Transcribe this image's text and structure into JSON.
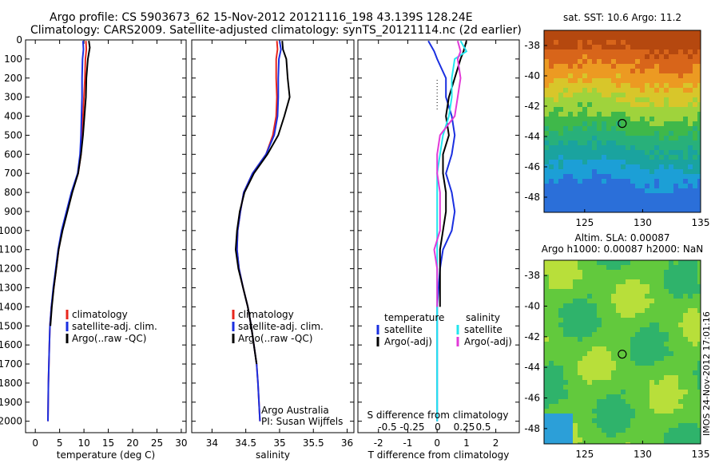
{
  "header": {
    "title_line1": "Argo profile: CS 5903673_62 15-Nov-2012 20121116_198 43.139S 128.24E",
    "title_line2": "Climatology: CARS2009. Satellite-adjusted climatology: synTS_20121114.nc (2d earlier)"
  },
  "colors": {
    "climatology": "#e8261c",
    "satellite": "#1a2fe0",
    "argo": "#000000",
    "salinity_satellite": "#22e6ee",
    "salinity_argo": "#e23ad8"
  },
  "footer": {
    "org": "Argo Australia",
    "pi": "PI: Susan Wijffels",
    "stamp": "IMOS 24-Nov-2012 17:01:16"
  },
  "chart_data": [
    {
      "type": "line",
      "panel": "temperature",
      "xlabel": "temperature (deg C)",
      "ylabel": "",
      "xlim": [
        -2,
        31
      ],
      "ylim": [
        2060,
        0
      ],
      "xticks": [
        0,
        5,
        10,
        15,
        20,
        25,
        30
      ],
      "yticks": [
        0,
        100,
        200,
        300,
        400,
        500,
        600,
        700,
        800,
        900,
        1000,
        1100,
        1200,
        1300,
        1400,
        1500,
        1600,
        1700,
        1800,
        1900,
        2000
      ],
      "legend": [
        "climatology",
        "satellite-adj. clim.",
        "Argo(..raw -QC)"
      ],
      "legend_position": "lower-right",
      "series": [
        {
          "name": "climatology",
          "x": [
            10.4,
            10.5,
            10.3,
            10.2,
            10.0,
            9.8,
            9.6,
            9.4,
            8.8,
            7.5,
            6.5,
            5.5,
            4.8,
            4.3,
            3.8,
            3.3,
            3.0,
            2.9,
            2.8,
            2.7,
            2.6
          ],
          "depth": [
            5,
            50,
            100,
            200,
            300,
            400,
            500,
            600,
            700,
            800,
            900,
            1000,
            1100,
            1200,
            1300,
            1400,
            1500,
            1600,
            1700,
            1800,
            2000
          ]
        },
        {
          "name": "satellite-adj. clim.",
          "x": [
            9.8,
            9.9,
            9.7,
            9.6,
            9.6,
            9.5,
            9.4,
            9.2,
            8.7,
            7.4,
            6.4,
            5.4,
            4.7,
            4.2,
            3.7,
            3.3,
            3.0,
            2.9,
            2.8,
            2.7,
            2.6
          ],
          "depth": [
            5,
            50,
            100,
            200,
            300,
            400,
            500,
            600,
            700,
            800,
            900,
            1000,
            1100,
            1200,
            1300,
            1400,
            1500,
            1600,
            1700,
            1800,
            2000
          ]
        },
        {
          "name": "Argo(..raw -QC)",
          "x": [
            11.0,
            11.2,
            10.8,
            10.5,
            10.4,
            10.1,
            9.8,
            9.4,
            8.8,
            7.6,
            6.6,
            5.6,
            4.8,
            4.3,
            3.8,
            3.4,
            3.1
          ],
          "depth": [
            5,
            40,
            100,
            200,
            300,
            400,
            500,
            600,
            700,
            800,
            900,
            1000,
            1100,
            1200,
            1300,
            1400,
            1500
          ]
        }
      ]
    },
    {
      "type": "line",
      "panel": "salinity",
      "xlabel": "salinity",
      "xlim": [
        33.7,
        36.1
      ],
      "ylim": [
        2060,
        0
      ],
      "xticks": [
        34,
        34.5,
        35,
        35.5,
        36
      ],
      "legend": [
        "climatology",
        "satellite-adj. clim.",
        "Argo(..raw -QC)"
      ],
      "legend_position": "lower-right",
      "series": [
        {
          "name": "climatology",
          "x": [
            34.96,
            34.97,
            34.95,
            34.95,
            34.96,
            34.95,
            34.9,
            34.8,
            34.6,
            34.47,
            34.42,
            34.38,
            34.37,
            34.4,
            34.46,
            34.53,
            34.58,
            34.62,
            34.66,
            34.68,
            34.71
          ],
          "depth": [
            5,
            50,
            100,
            200,
            300,
            400,
            500,
            600,
            700,
            800,
            900,
            1000,
            1100,
            1200,
            1300,
            1400,
            1500,
            1600,
            1700,
            1800,
            2000
          ]
        },
        {
          "name": "satellite-adj. clim.",
          "x": [
            35.0,
            35.02,
            34.99,
            34.98,
            34.98,
            34.97,
            34.92,
            34.8,
            34.6,
            34.47,
            34.42,
            34.38,
            34.37,
            34.4,
            34.46,
            34.53,
            34.58,
            34.62,
            34.66,
            34.68,
            34.71
          ],
          "depth": [
            5,
            50,
            100,
            200,
            300,
            400,
            500,
            600,
            700,
            800,
            900,
            1000,
            1100,
            1200,
            1300,
            1400,
            1500,
            1600,
            1700,
            1800,
            2000
          ]
        },
        {
          "name": "Argo(..raw -QC)",
          "x": [
            35.04,
            35.05,
            35.1,
            35.12,
            35.15,
            35.07,
            34.98,
            34.82,
            34.62,
            34.48,
            34.41,
            34.37,
            34.35,
            34.39,
            34.46,
            34.53,
            34.58,
            34.62,
            34.66
          ],
          "depth": [
            5,
            50,
            100,
            200,
            300,
            400,
            500,
            600,
            700,
            800,
            900,
            1000,
            1100,
            1200,
            1300,
            1400,
            1500,
            1600,
            1700
          ]
        }
      ]
    },
    {
      "type": "line",
      "panel": "difference",
      "xlabel": "T difference from climatology",
      "top_axis_label": "S difference from climatology",
      "xlim": [
        -2.7,
        2.8
      ],
      "ylim": [
        2060,
        0
      ],
      "xticks": [
        -2,
        -1,
        0,
        1,
        2
      ],
      "top_xticks": [
        "-0.5",
        "-0.25",
        "0",
        "0.25",
        "0.5"
      ],
      "legend_temperature_title": "temperature",
      "legend_salinity_title": "salinity",
      "legend_temperature": [
        "satellite",
        "Argo(-adj)"
      ],
      "legend_salinity": [
        "satellite",
        "Argo(-adj)"
      ],
      "series": [
        {
          "name": "temperature satellite",
          "x": [
            -0.3,
            -0.1,
            0.0,
            0.3,
            0.3,
            0.5,
            0.6,
            0.5,
            0.3,
            0.5,
            0.6,
            0.5,
            0.2,
            0.1,
            0.0,
            0.0,
            0.0,
            0.0
          ],
          "depth": [
            5,
            60,
            100,
            200,
            300,
            400,
            500,
            600,
            700,
            800,
            900,
            1000,
            1100,
            1200,
            1400,
            1600,
            1800,
            2000
          ]
        },
        {
          "name": "temperature Argo(-adj)",
          "x": [
            1.0,
            0.9,
            0.8,
            0.6,
            0.4,
            0.3,
            0.4,
            0.2,
            0.2,
            0.3,
            0.3,
            0.2,
            0.1,
            0.1,
            0.1
          ],
          "depth": [
            5,
            60,
            100,
            200,
            300,
            400,
            500,
            600,
            700,
            800,
            900,
            1000,
            1100,
            1200,
            1400
          ]
        },
        {
          "name": "salinity satellite",
          "x": [
            0.8,
            1.0,
            0.6,
            0.5,
            0.5,
            0.4,
            0.2,
            0.1,
            0.0,
            0.0,
            0.0,
            0.0,
            0.0,
            0.0,
            0.0,
            0.0,
            0.0
          ],
          "depth": [
            5,
            60,
            100,
            200,
            300,
            400,
            500,
            600,
            700,
            800,
            900,
            1000,
            1100,
            1200,
            1400,
            1600,
            2000
          ]
        },
        {
          "name": "salinity Argo(-adj)",
          "x": [
            0.7,
            0.8,
            0.7,
            0.8,
            0.7,
            0.6,
            0.1,
            0.0,
            0.0,
            0.1,
            0.1,
            0.1,
            -0.1,
            0.0,
            0.0
          ],
          "depth": [
            5,
            60,
            100,
            200,
            300,
            400,
            500,
            600,
            700,
            800,
            900,
            1000,
            1100,
            1200,
            1400
          ]
        }
      ]
    },
    {
      "type": "heatmap",
      "panel": "sst_map",
      "title": "sat. SST: 10.6 Argo: 11.2",
      "xlim": [
        121.5,
        135
      ],
      "ylim": [
        -49,
        -37
      ],
      "xticks": [
        125,
        130,
        135
      ],
      "yticks": [
        -38,
        -40,
        -42,
        -44,
        -46,
        -48
      ],
      "marker": {
        "lon": 128.24,
        "lat": -43.139
      }
    },
    {
      "type": "heatmap",
      "panel": "sla_map",
      "title": "Altim. SLA: 0.00087",
      "subtitle": "Argo h1000: 0.00087 h2000: NaN",
      "xlim": [
        121.5,
        135
      ],
      "ylim": [
        -49,
        -37
      ],
      "xticks": [
        125,
        130,
        135
      ],
      "yticks": [
        -38,
        -40,
        -42,
        -44,
        -46,
        -48
      ],
      "marker": {
        "lon": 128.24,
        "lat": -43.139
      }
    }
  ]
}
